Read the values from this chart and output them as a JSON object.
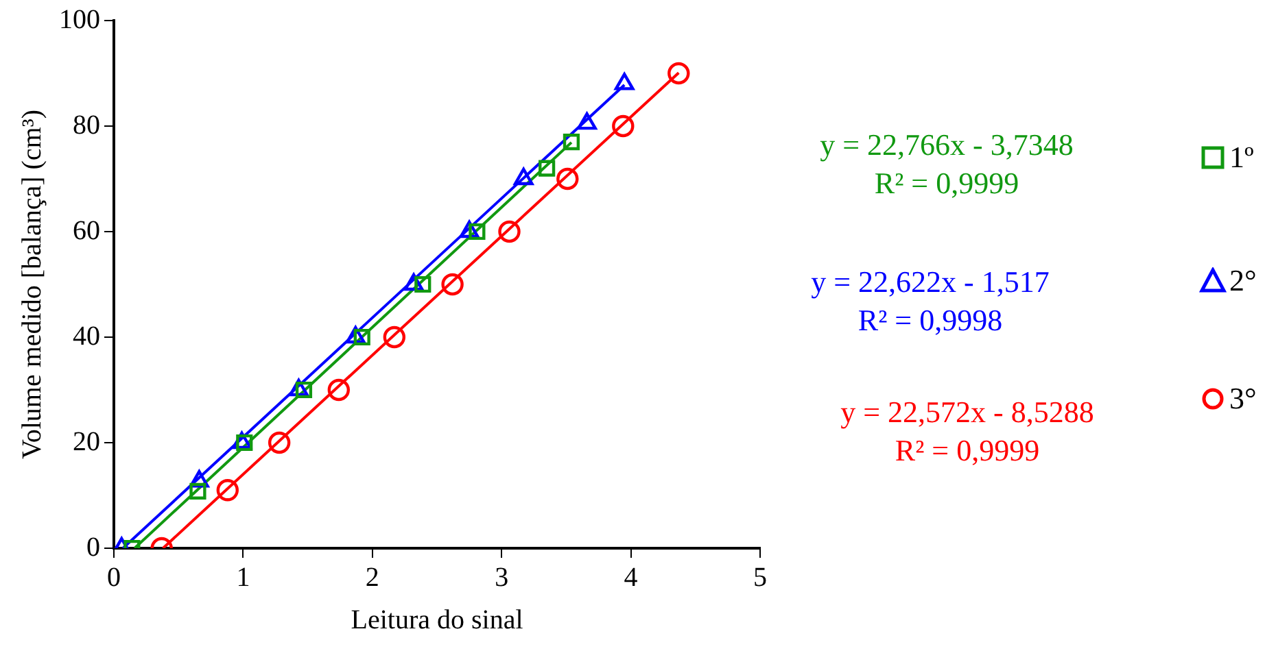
{
  "chart_data": {
    "type": "scatter",
    "xlabel": "Leitura do sinal",
    "ylabel": "Volume medido [balança] (cm³)",
    "xlim": [
      0,
      5
    ],
    "xticks": [
      0,
      1,
      2,
      3,
      4,
      5
    ],
    "ylim": [
      0,
      100
    ],
    "yticks": [
      0,
      20,
      40,
      60,
      80,
      100
    ],
    "grid": false,
    "legend": "right",
    "series": [
      {
        "name": "1º",
        "marker": "square",
        "color": "#119911",
        "x": [
          0.14,
          0.65,
          1.01,
          1.47,
          1.92,
          2.39,
          2.81,
          3.35,
          3.54
        ],
        "values": [
          0,
          10.8,
          20,
          30,
          40,
          50,
          60,
          72,
          77
        ]
      },
      {
        "name": "2°",
        "marker": "triangle",
        "color": "#0000ff",
        "x": [
          0.06,
          0.66,
          0.99,
          1.43,
          1.87,
          2.32,
          2.75,
          3.17,
          3.66,
          3.95
        ],
        "values": [
          0,
          12.7,
          20,
          30,
          40,
          50,
          60,
          70,
          80.5,
          88
        ]
      },
      {
        "name": "3°",
        "marker": "circle",
        "color": "#ff0000",
        "x": [
          0.37,
          0.88,
          1.28,
          1.74,
          2.17,
          2.62,
          3.06,
          3.51,
          3.94,
          4.37
        ],
        "values": [
          0,
          11,
          20,
          30,
          40,
          50,
          60,
          70,
          80,
          90
        ]
      },
      {
        "type": "line",
        "marker": "none",
        "color": "#119911",
        "x": [
          0.16,
          3.54
        ],
        "values": [
          0,
          76.9
        ]
      },
      {
        "type": "line",
        "marker": "none",
        "color": "#0000ff",
        "x": [
          0.07,
          3.95
        ],
        "values": [
          0,
          87.8
        ]
      },
      {
        "type": "line",
        "marker": "none",
        "color": "#ff0000",
        "x": [
          0.38,
          4.37
        ],
        "values": [
          0,
          90.1
        ]
      }
    ],
    "annotations": [
      "y = 22,766x - 3,7348",
      "R² = 0,9999",
      "y = 22,622x - 1,517",
      "R² = 0,9998",
      "y = 22,572x - 8,5288",
      "R² = 0,9999"
    ]
  }
}
